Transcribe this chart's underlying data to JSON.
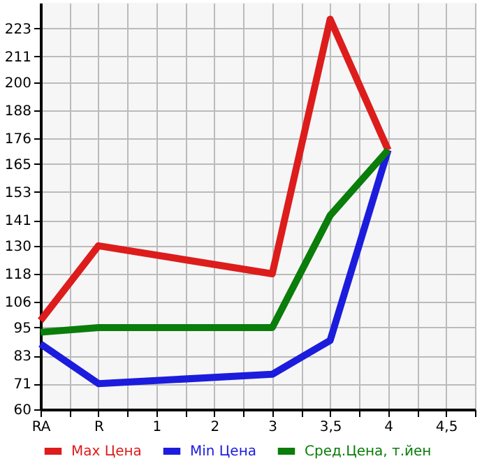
{
  "chart_data": {
    "type": "line",
    "categories": [
      "RA",
      "R",
      "1",
      "2",
      "3",
      "3,5",
      "4",
      "4,5"
    ],
    "series": [
      {
        "name": "Max Цена",
        "color": "#dd1c1c",
        "values": [
          98,
          130,
          null,
          null,
          118,
          227,
          171,
          null
        ]
      },
      {
        "name": "Min Цена",
        "color": "#1c1cdd",
        "values": [
          88,
          71,
          null,
          null,
          75,
          89.5,
          171,
          null
        ]
      },
      {
        "name": "Сред.Цена, т.йен",
        "color": "#0a7d0a",
        "values": [
          93,
          95,
          null,
          null,
          95,
          143,
          171,
          null
        ]
      }
    ],
    "ylim": [
      60,
      234
    ],
    "yticks": [
      60,
      71,
      83,
      95,
      106,
      118,
      130,
      141,
      153,
      165,
      176,
      188,
      200,
      211,
      223
    ],
    "grid": true,
    "legend": "bottom",
    "marker": "none",
    "line_style": "solid"
  }
}
